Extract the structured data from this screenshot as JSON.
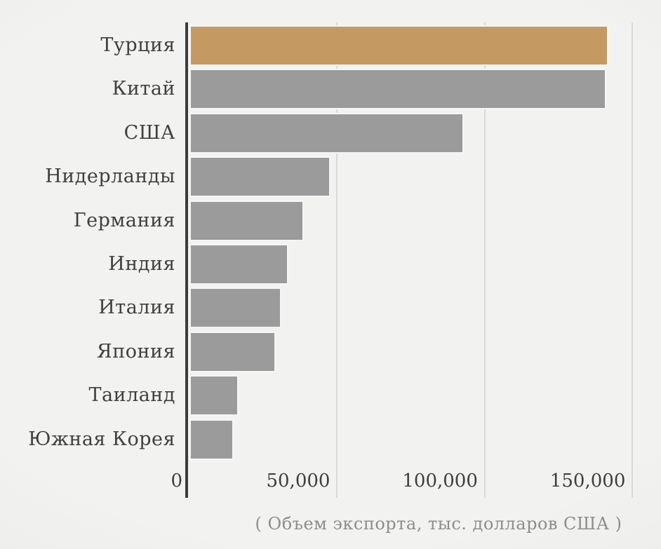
{
  "chart_data": {
    "type": "bar",
    "orientation": "horizontal",
    "title": "",
    "xlabel": "( Объем экспорта, тыс. долларов США )",
    "ylabel": "",
    "categories": [
      "Турция",
      "Китай",
      "США",
      "Нидерланды",
      "Германия",
      "Индия",
      "Италия",
      "Япония",
      "Таиланд",
      "Южная Корея"
    ],
    "values": [
      141800,
      141200,
      93000,
      47800,
      38700,
      33500,
      31100,
      29200,
      16600,
      15000
    ],
    "highlight_index": 0,
    "x_ticks": [
      {
        "label": "0",
        "value": 0
      },
      {
        "label": "50,000",
        "value": 50000
      },
      {
        "label": "100,000",
        "value": 100000
      },
      {
        "label": "150,000",
        "value": 150000
      }
    ],
    "xlim": [
      0,
      156800
    ],
    "grid": true,
    "legend": "none"
  },
  "colors": {
    "background": "#f1f1ef",
    "bar_gray": "#9b9b9b",
    "bar_highlight": "#c59a62",
    "bar_edge": "#f5f6f8",
    "axis_line": "#3c3c3c",
    "gridline": "#d9d9d7",
    "label_text": "#3f3f3f",
    "caption_text": "#8d8d8d"
  }
}
